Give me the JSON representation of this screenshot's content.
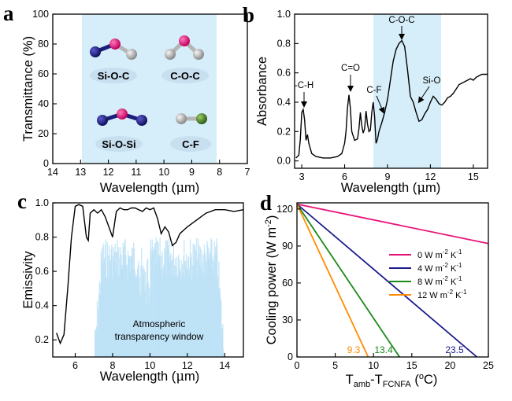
{
  "chart_data": [
    {
      "panel": "a",
      "type": "diagram",
      "xlabel": "Wavelength (μm)",
      "ylabel": "Transmittance (%)",
      "xlim": [
        14,
        7
      ],
      "ylim": [
        0,
        100
      ],
      "xticks": [
        14,
        13,
        12,
        11,
        10,
        9,
        8,
        7
      ],
      "yticks": [
        0,
        20,
        40,
        60,
        80,
        100
      ],
      "highlight": {
        "from": 13,
        "to": 8,
        "color": "#d6eef9"
      },
      "molecules": [
        "Si-O-C",
        "C-O-C",
        "Si-O-Si",
        "C-F"
      ],
      "colors": {
        "Si": "#1c1c7a",
        "O": "#e0127a",
        "C": "#b5b5b5",
        "F": "#4a7a2c"
      }
    },
    {
      "panel": "b",
      "type": "line",
      "xlabel": "Wavelength (μm)",
      "ylabel": "Absorbance",
      "xlim": [
        2.5,
        16
      ],
      "ylim": [
        -0.05,
        1.0
      ],
      "xticks": [
        3,
        6,
        9,
        12,
        15
      ],
      "yticks": [
        0.0,
        0.2,
        0.4,
        0.6,
        0.8,
        1.0
      ],
      "highlight": {
        "from": 8,
        "to": 12.8,
        "color": "#d6eef9"
      },
      "series": [
        {
          "color": "#000000",
          "x": [
            2.6,
            2.8,
            2.9,
            3.0,
            3.1,
            3.2,
            3.3,
            3.4,
            3.5,
            3.7,
            4.0,
            4.5,
            5.0,
            5.5,
            5.8,
            6.0,
            6.1,
            6.2,
            6.3,
            6.4,
            6.5,
            6.7,
            6.9,
            7.0,
            7.1,
            7.2,
            7.3,
            7.4,
            7.5,
            7.6,
            7.7,
            7.8,
            7.9,
            8.0,
            8.1,
            8.2,
            8.3,
            8.4,
            8.6,
            8.8,
            9.0,
            9.2,
            9.4,
            9.6,
            9.8,
            10.0,
            10.2,
            10.4,
            10.6,
            10.8,
            11.0,
            11.2,
            11.4,
            11.6,
            11.8,
            12.0,
            12.2,
            12.4,
            12.6,
            12.8,
            13.0,
            13.2,
            13.4,
            13.6,
            13.8,
            14.0,
            14.2,
            14.4,
            14.6,
            14.8,
            15.0,
            15.2,
            15.4,
            15.6,
            15.8,
            16.0
          ],
          "y": [
            0.02,
            0.04,
            0.15,
            0.33,
            0.35,
            0.28,
            0.14,
            0.18,
            0.12,
            0.05,
            0.03,
            0.02,
            0.02,
            0.03,
            0.05,
            0.12,
            0.2,
            0.36,
            0.45,
            0.36,
            0.2,
            0.14,
            0.15,
            0.22,
            0.33,
            0.24,
            0.19,
            0.22,
            0.34,
            0.25,
            0.2,
            0.21,
            0.33,
            0.4,
            0.3,
            0.12,
            0.15,
            0.2,
            0.26,
            0.33,
            0.42,
            0.55,
            0.68,
            0.76,
            0.8,
            0.82,
            0.78,
            0.62,
            0.44,
            0.4,
            0.33,
            0.27,
            0.28,
            0.32,
            0.35,
            0.4,
            0.44,
            0.42,
            0.39,
            0.38,
            0.4,
            0.43,
            0.44,
            0.46,
            0.49,
            0.52,
            0.53,
            0.54,
            0.55,
            0.56,
            0.55,
            0.57,
            0.58,
            0.59,
            0.59,
            0.59
          ]
        }
      ],
      "annotations": [
        {
          "text": "-C-H",
          "x": 3.0,
          "y": 0.35
        },
        {
          "text": "C=O",
          "x": 6.3,
          "y": 0.45
        },
        {
          "text": "C-F",
          "x": 8.1,
          "y": 0.33
        },
        {
          "text": "C-O-C",
          "x": 9.9,
          "y": 0.82
        },
        {
          "text": "Si-O",
          "x": 11.2,
          "y": 0.44
        }
      ]
    },
    {
      "panel": "c",
      "type": "line",
      "xlabel": "Wavelength (μm)",
      "ylabel": "Emissivity",
      "xlim": [
        4.8,
        15
      ],
      "ylim": [
        0.1,
        1.0
      ],
      "xticks": [
        6,
        8,
        10,
        12,
        14
      ],
      "yticks": [
        0.2,
        0.4,
        0.6,
        0.8,
        1.0
      ],
      "window_label": "Atmospheric transparency window",
      "window_color": "#b8dff5",
      "series": [
        {
          "color": "#000000",
          "x": [
            5.0,
            5.2,
            5.4,
            5.6,
            5.8,
            6.0,
            6.2,
            6.4,
            6.6,
            6.7,
            6.8,
            7.0,
            7.2,
            7.4,
            7.6,
            7.8,
            8.0,
            8.2,
            8.4,
            8.6,
            8.8,
            9.0,
            9.2,
            9.4,
            9.6,
            9.8,
            10.0,
            10.2,
            10.4,
            10.6,
            10.8,
            11.0,
            11.2,
            11.4,
            11.6,
            12.0,
            12.5,
            13.0,
            13.5,
            14.0,
            14.5,
            15.0
          ],
          "y": [
            0.24,
            0.18,
            0.23,
            0.5,
            0.8,
            0.98,
            0.99,
            0.98,
            0.8,
            0.78,
            0.94,
            0.96,
            0.94,
            0.96,
            0.92,
            0.86,
            0.8,
            0.95,
            0.97,
            0.96,
            0.96,
            0.97,
            0.97,
            0.96,
            0.95,
            0.97,
            0.96,
            0.97,
            0.91,
            0.82,
            0.86,
            0.83,
            0.75,
            0.77,
            0.82,
            0.86,
            0.9,
            0.94,
            0.96,
            0.96,
            0.95,
            0.96
          ]
        }
      ]
    },
    {
      "panel": "d",
      "type": "line",
      "xlabel": "T_amb-T_FCNFA (°C)",
      "ylabel": "Cooling power (W m⁻²)",
      "xlim": [
        0,
        25
      ],
      "ylim": [
        0,
        125
      ],
      "xticks": [
        0,
        5,
        10,
        15,
        20,
        25
      ],
      "yticks": [
        0,
        30,
        60,
        90,
        120
      ],
      "legend_position": "middle-right",
      "series": [
        {
          "name": "0 W m⁻² K⁻¹",
          "color": "#e8157a",
          "x": [
            0,
            25
          ],
          "y": [
            124,
            92
          ]
        },
        {
          "name": "4 W m⁻² K⁻¹",
          "color": "#1a1a8c",
          "x": [
            0,
            23.5
          ],
          "y": [
            124,
            0
          ],
          "end_label": "23.5"
        },
        {
          "name": "8 W m⁻² K⁻¹",
          "color": "#1a8a1a",
          "x": [
            0,
            13.4
          ],
          "y": [
            124,
            0
          ],
          "end_label": "13.4"
        },
        {
          "name": "12 W m⁻² K⁻¹",
          "color": "#ff8c00",
          "x": [
            0,
            9.3
          ],
          "y": [
            124,
            0
          ],
          "end_label": "9.3"
        }
      ]
    }
  ],
  "panel_labels": [
    "a",
    "b",
    "c",
    "d"
  ],
  "axes": {
    "a": {
      "xpre": "Wavelength (",
      "xunit": "μ",
      "xpost": "m)",
      "ylabel": "Transmittance (%)"
    },
    "b": {
      "xpre": "Wavelength (",
      "xunit": "μ",
      "xpost": "m)",
      "ylabel": "Absorbance"
    },
    "c": {
      "xpre": "Wavelength (",
      "xunit": "μ",
      "xpost": "m)",
      "ylabel": "Emissivity"
    },
    "d": {
      "x_main": "T",
      "x_sub1": "amb",
      "x_dash": "-T",
      "x_sub2": "FCNFA",
      "x_open": " (",
      "x_sup": "o",
      "x_close": "C)",
      "y_main": "Cooling power (W m",
      "y_sup": "-2",
      "y_close": ")"
    }
  },
  "molecule_labels": [
    "Si-O-C",
    "C-O-C",
    "Si-O-Si",
    "C-F"
  ],
  "annotations_b": [
    "-C-H",
    "C=O",
    "C-F",
    "C-O-C",
    "Si-O"
  ],
  "window_text": [
    "Atmospheric",
    "transparency window"
  ],
  "legend_d": [
    "0 W m",
    "4 W m",
    "8 W m",
    "12 W m"
  ],
  "legend_sup": [
    "-2",
    "-1"
  ],
  "legend_k": " K",
  "end_labels": [
    "9.3",
    "13.4",
    "23.5"
  ],
  "ticks": {
    "a_x": [
      "14",
      "13",
      "12",
      "11",
      "10",
      "9",
      "8",
      "7"
    ],
    "a_y": [
      "0",
      "20",
      "40",
      "60",
      "80",
      "100"
    ],
    "b_x": [
      "3",
      "6",
      "9",
      "12",
      "15"
    ],
    "b_y": [
      "0.0",
      "0.2",
      "0.4",
      "0.6",
      "0.8",
      "1.0"
    ],
    "c_x": [
      "6",
      "8",
      "10",
      "12",
      "14"
    ],
    "c_y": [
      "0.2",
      "0.4",
      "0.6",
      "0.8",
      "1.0"
    ],
    "d_x": [
      "0",
      "5",
      "10",
      "15",
      "20",
      "25"
    ],
    "d_y": [
      "0",
      "30",
      "60",
      "90",
      "120"
    ]
  }
}
